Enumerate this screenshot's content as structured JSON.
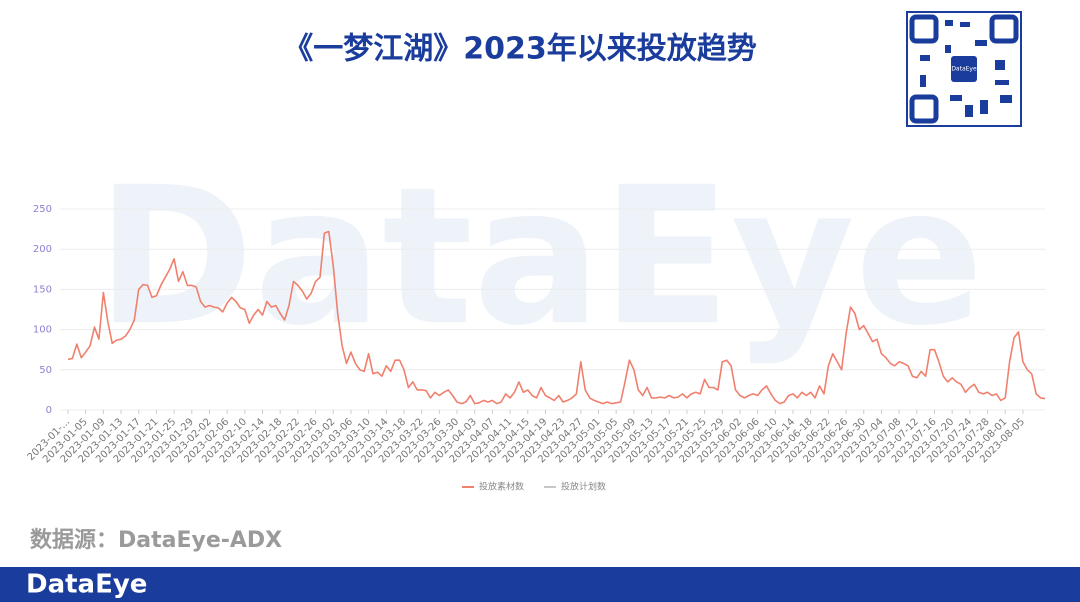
{
  "slide": {
    "title": "《一梦江湖》2023年以来投放趋势",
    "source": "数据源：DataEye-ADX",
    "logo": "DataEye",
    "qr_label": "DataEye",
    "watermark": "DataEye"
  },
  "chart_data": {
    "type": "line",
    "categories": [
      "2023-01-...",
      null,
      null,
      null,
      "2023-01-05",
      null,
      null,
      null,
      "2023-01-09",
      null,
      null,
      null,
      "2023-01-13",
      null,
      null,
      null,
      "2023-01-17",
      null,
      null,
      null,
      "2023-01-21",
      null,
      null,
      null,
      "2023-01-25",
      null,
      null,
      null,
      "2023-01-29",
      null,
      null,
      null,
      "2023-02-02",
      null,
      null,
      null,
      "2023-02-06",
      null,
      null,
      null,
      "2023-02-10",
      null,
      null,
      null,
      "2023-02-14",
      null,
      null,
      null,
      "2023-02-18",
      null,
      null,
      null,
      "2023-02-22",
      null,
      null,
      null,
      "2023-02-26",
      null,
      null,
      null,
      "2023-03-02",
      null,
      null,
      null,
      "2023-03-06",
      null,
      null,
      null,
      "2023-03-10",
      null,
      null,
      null,
      "2023-03-14",
      null,
      null,
      null,
      "2023-03-18",
      null,
      null,
      null,
      "2023-03-22",
      null,
      null,
      null,
      "2023-03-26",
      null,
      null,
      null,
      "2023-03-30",
      null,
      null,
      null,
      "2023-04-03",
      null,
      null,
      null,
      "2023-04-07",
      null,
      null,
      null,
      "2023-04-11",
      null,
      null,
      null,
      "2023-04-15",
      null,
      null,
      null,
      "2023-04-19",
      null,
      null,
      null,
      "2023-04-23",
      null,
      null,
      null,
      "2023-04-27",
      null,
      null,
      null,
      "2023-05-01",
      null,
      null,
      null,
      "2023-05-05",
      null,
      null,
      null,
      "2023-05-09",
      null,
      null,
      null,
      "2023-05-13",
      null,
      null,
      null,
      "2023-05-17",
      null,
      null,
      null,
      "2023-05-21",
      null,
      null,
      null,
      "2023-05-25",
      null,
      null,
      null,
      "2023-05-29",
      null,
      null,
      null,
      "2023-06-02",
      null,
      null,
      null,
      "2023-06-06",
      null,
      null,
      null,
      "2023-06-10",
      null,
      null,
      null,
      "2023-06-14",
      null,
      null,
      null,
      "2023-06-18",
      null,
      null,
      null,
      "2023-06-22",
      null,
      null,
      null,
      "2023-06-26",
      null,
      null,
      null,
      "2023-06-30",
      null,
      null,
      null,
      "2023-07-04",
      null,
      null,
      null,
      "2023-07-08",
      null,
      null,
      null,
      "2023-07-12",
      null,
      null,
      null,
      "2023-07-16",
      null,
      null,
      null,
      "2023-07-20",
      null,
      null,
      null,
      "2023-07-24",
      null,
      null,
      null,
      "2023-07-28",
      null,
      null,
      null,
      "2023-08-01",
      null,
      null,
      null,
      "2023-08-05",
      null,
      null,
      null,
      null,
      null
    ],
    "series": [
      {
        "name": "投放素材数",
        "color": "#f0806e",
        "values": [
          63,
          64,
          82,
          65,
          72,
          80,
          103,
          88,
          146,
          110,
          83,
          87,
          88,
          92,
          100,
          112,
          150,
          156,
          155,
          140,
          142,
          155,
          165,
          175,
          188,
          160,
          172,
          155,
          155,
          153,
          135,
          128,
          130,
          128,
          127,
          122,
          133,
          140,
          135,
          127,
          125,
          108,
          118,
          125,
          118,
          135,
          128,
          130,
          120,
          112,
          130,
          160,
          155,
          148,
          138,
          145,
          160,
          165,
          220,
          222,
          180,
          120,
          80,
          58,
          72,
          58,
          50,
          48,
          70,
          45,
          47,
          42,
          55,
          48,
          62,
          62,
          50,
          28,
          35,
          25,
          25,
          24,
          15,
          22,
          18,
          22,
          25,
          18,
          10,
          8,
          10,
          18,
          8,
          9,
          12,
          10,
          12,
          8,
          10,
          20,
          15,
          22,
          35,
          22,
          25,
          18,
          15,
          28,
          18,
          15,
          12,
          18,
          10,
          12,
          15,
          20,
          60,
          25,
          15,
          12,
          10,
          8,
          10,
          8,
          9,
          10,
          35,
          62,
          50,
          25,
          18,
          28,
          15,
          15,
          16,
          15,
          18,
          15,
          16,
          20,
          15,
          20,
          22,
          20,
          38,
          28,
          28,
          25,
          60,
          62,
          55,
          25,
          18,
          15,
          18,
          20,
          18,
          25,
          30,
          20,
          12,
          8,
          10,
          18,
          20,
          15,
          22,
          18,
          22,
          15,
          30,
          20,
          55,
          70,
          60,
          50,
          95,
          128,
          120,
          100,
          105,
          95,
          85,
          88,
          70,
          65,
          58,
          55,
          60,
          58,
          55,
          42,
          40,
          48,
          42,
          75,
          75,
          60,
          42,
          35,
          40,
          35,
          32,
          22,
          28,
          32,
          22,
          20,
          22,
          18,
          20,
          12,
          15,
          60,
          90,
          97,
          60,
          50,
          45,
          20,
          15,
          14
        ]
      },
      {
        "name": "投放计划数",
        "color": "#c8c8c8"
      }
    ],
    "ylim": [
      0,
      250
    ],
    "yticks": [
      0,
      50,
      100,
      150,
      200,
      250
    ],
    "grid": true,
    "legend": "bottom"
  }
}
